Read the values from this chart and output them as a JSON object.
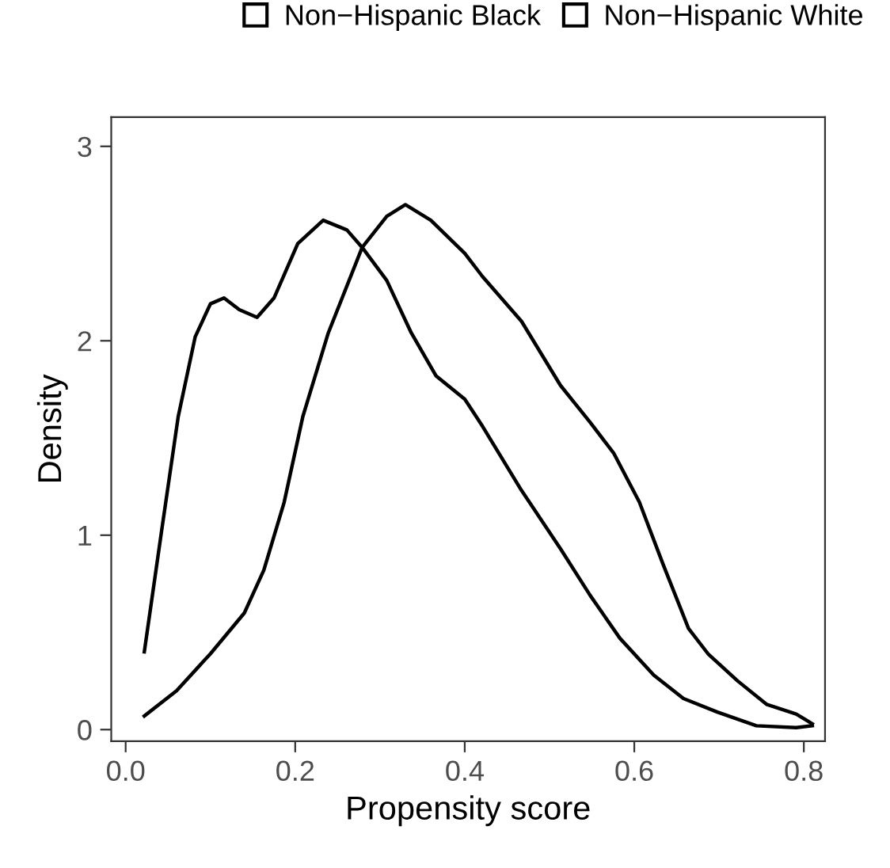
{
  "chart_data": {
    "type": "line",
    "xlabel": "Propensity score",
    "ylabel": "Density",
    "xlim": [
      -0.017,
      0.825
    ],
    "ylim": [
      -0.06,
      3.15
    ],
    "xticks": [
      {
        "value": 0.0,
        "label": "0.0"
      },
      0.2,
      0.4,
      0.6,
      0.8
    ],
    "yticks": [
      0,
      1,
      2,
      3
    ],
    "grid": false,
    "legend": "top",
    "marker": "none",
    "line_style": "solid",
    "series": [
      {
        "name": "Non−Hispanic Black",
        "color": "#000000",
        "x": [
          0.022,
          0.06,
          0.1,
          0.14,
          0.163,
          0.187,
          0.209,
          0.239,
          0.279,
          0.308,
          0.33,
          0.36,
          0.4,
          0.421,
          0.467,
          0.513,
          0.548,
          0.576,
          0.606,
          0.634,
          0.664,
          0.687,
          0.722,
          0.756,
          0.791,
          0.81
        ],
        "values": [
          0.07,
          0.2,
          0.39,
          0.6,
          0.82,
          1.17,
          1.61,
          2.04,
          2.48,
          2.64,
          2.7,
          2.62,
          2.45,
          2.33,
          2.1,
          1.77,
          1.58,
          1.42,
          1.17,
          0.85,
          0.52,
          0.39,
          0.25,
          0.13,
          0.08,
          0.03
        ]
      },
      {
        "name": "Non−Hispanic White",
        "color": "#000000",
        "x": [
          0.022,
          0.042,
          0.062,
          0.082,
          0.1,
          0.116,
          0.134,
          0.155,
          0.175,
          0.203,
          0.233,
          0.261,
          0.279,
          0.308,
          0.337,
          0.366,
          0.4,
          0.421,
          0.467,
          0.513,
          0.548,
          0.583,
          0.623,
          0.658,
          0.698,
          0.744,
          0.791,
          0.81
        ],
        "values": [
          0.4,
          1.01,
          1.61,
          2.02,
          2.19,
          2.22,
          2.16,
          2.12,
          2.22,
          2.5,
          2.62,
          2.57,
          2.48,
          2.31,
          2.04,
          1.82,
          1.7,
          1.56,
          1.23,
          0.93,
          0.69,
          0.47,
          0.28,
          0.16,
          0.09,
          0.02,
          0.01,
          0.02
        ]
      }
    ]
  }
}
